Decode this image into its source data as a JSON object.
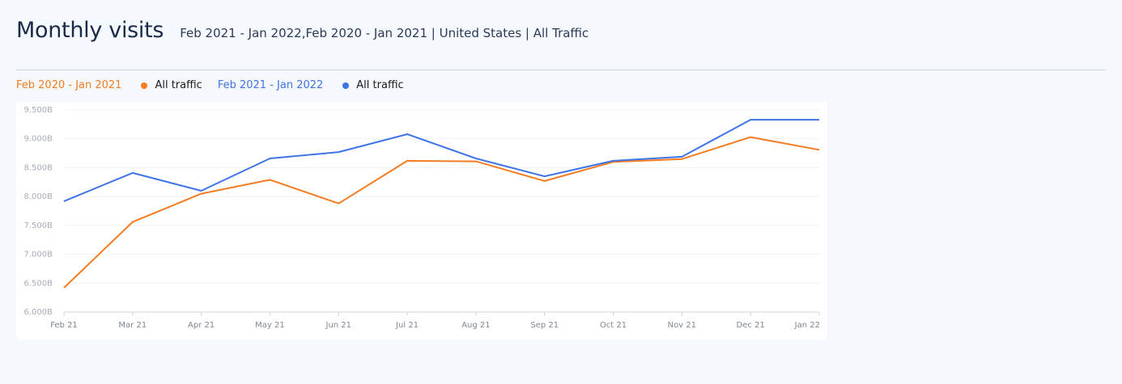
{
  "header": {
    "title": "Monthly visits",
    "subtitle": "Feb 2021 - Jan 2022,Feb 2020 - Jan 2021 | United States | All Traffic"
  },
  "legend": [
    {
      "range": "Feb 2020 - Jan 2021",
      "label": "All traffic",
      "color": "#f47b20"
    },
    {
      "range": "Feb 2021 - Jan 2022",
      "label": "All traffic",
      "color": "#3e74e6"
    }
  ],
  "chart_data": {
    "type": "line",
    "categories": [
      "Feb 21",
      "Mar 21",
      "Apr 21",
      "May 21",
      "Jun 21",
      "Jul 21",
      "Aug 21",
      "Sep 21",
      "Oct 21",
      "Nov 21",
      "Dec 21",
      "Jan 22"
    ],
    "y_ticks": [
      "6.000B",
      "6.500B",
      "7.000B",
      "7.500B",
      "8.000B",
      "8.500B",
      "9.000B",
      "9.500B"
    ],
    "ylim": [
      6.0,
      9.5
    ],
    "grid": true,
    "legend_position": "top-left",
    "series": [
      {
        "name": "Feb 2020 - Jan 2021",
        "color": "#f47b20",
        "values": [
          6.42,
          7.56,
          8.05,
          8.29,
          7.88,
          8.62,
          8.61,
          8.27,
          8.6,
          8.65,
          9.03,
          8.81
        ]
      },
      {
        "name": "Feb 2021 - Jan 2022",
        "color": "#3e74e6",
        "values": [
          7.92,
          8.41,
          8.1,
          8.66,
          8.77,
          9.08,
          8.66,
          8.35,
          8.62,
          8.69,
          9.33,
          9.33
        ]
      }
    ]
  }
}
